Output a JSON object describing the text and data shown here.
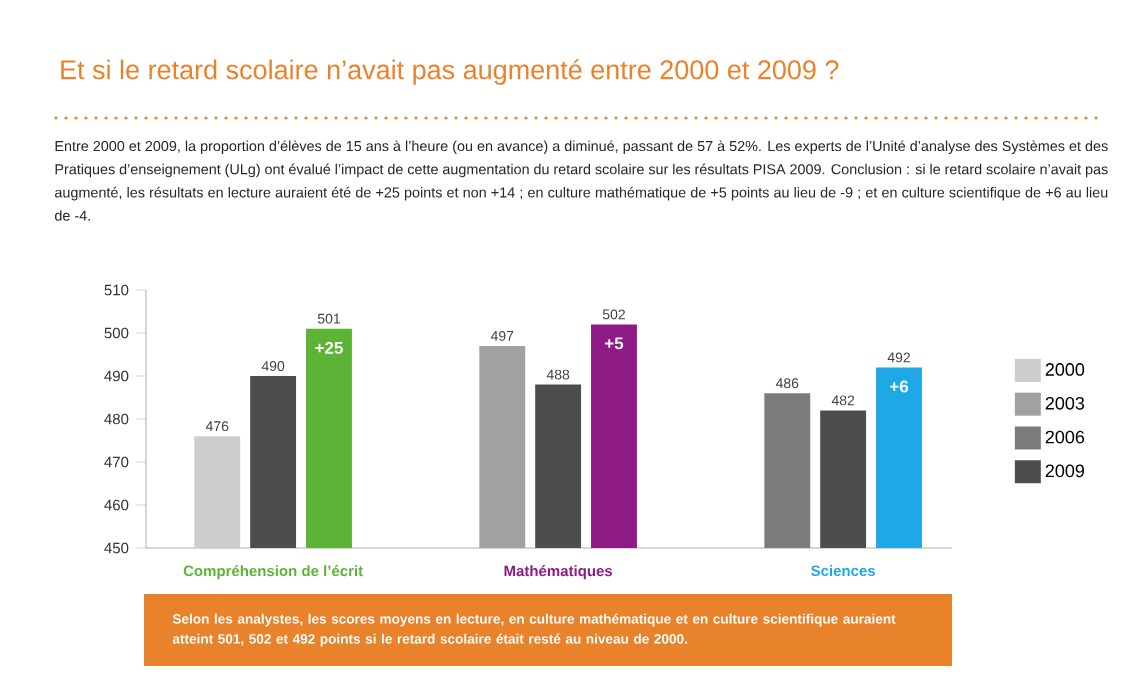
{
  "chart_data": {
    "type": "bar",
    "title": "Et si le retard scolaire n’avait pas augmenté entre 2000 et 2009 ?",
    "subtitle": "Entre 2000 et 2009, la proportion d’élèves de 15 ans à l’heure (ou en avance) a diminué, passant de 57 à 52%. Les experts de l’Unité d’analyse des Systèmes et des Pratiques d’enseignement (ULg) ont évalué l’impact de cette augmentation du retard scolaire sur les résultats PISA 2009. Conclusion : si le retard scolaire n’avait pas augmenté, les résultats en lecture auraient été de +25 points et non +14 ; en culture mathématique de +5 points au lieu de -9 ; et en culture scientifique de +6 au lieu de -4.",
    "categories": [
      "Compréhension de l’écrit",
      "Mathématiques",
      "Sciences"
    ],
    "series": [
      {
        "name": "2000",
        "color": "#cdcdcf",
        "values": [
          476,
          null,
          null
        ]
      },
      {
        "name": "2003",
        "color": "#a1a1a3",
        "values": [
          null,
          497,
          null
        ]
      },
      {
        "name": "2006",
        "color": "#7b7b7e",
        "values": [
          null,
          null,
          486
        ]
      },
      {
        "name": "2009",
        "color": "#4d4d4f",
        "values": [
          490,
          488,
          482
        ]
      },
      {
        "colors": [
          "#5cb335",
          "#8e1a86",
          "#1ea9e6"
        ],
        "values": [
          501,
          502,
          492
        ]
      }
    ],
    "ylim": [
      450,
      510
    ],
    "yticks": [
      450,
      460,
      470,
      480,
      490,
      500,
      510
    ],
    "data_labels": true,
    "legend": "right",
    "annotations": [
      "+25",
      "+5",
      "+6",
      "Selon les analystes, les scores moyens en lecture, en culture mathématique et en culture scientifique auraient atteint 501, 502 et 492 points si le retard scolaire était resté au niveau de 2000."
    ]
  }
}
